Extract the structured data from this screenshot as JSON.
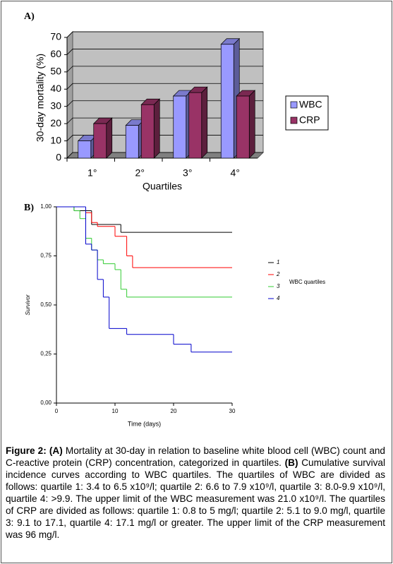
{
  "chart_data": [
    {
      "type": "bar",
      "panel": "A)",
      "categories": [
        "1°",
        "2°",
        "3°",
        "4°"
      ],
      "series": [
        {
          "name": "WBC",
          "color": "#9999ff",
          "values": [
            10,
            19,
            36,
            66
          ]
        },
        {
          "name": "CRP",
          "color": "#993366",
          "values": [
            20,
            31,
            38,
            36
          ]
        }
      ],
      "ylim": [
        0,
        70
      ],
      "yticks": [
        0,
        10,
        20,
        30,
        40,
        50,
        60,
        70
      ],
      "grid": true,
      "ylabel": "30-day mortality (%)",
      "xlabel": "Quartiles",
      "legend": "right"
    },
    {
      "type": "line",
      "panel": "B)",
      "drawstyle": "steps-post",
      "series": [
        {
          "name": "1",
          "color": "#000000",
          "x": [
            0,
            3,
            6,
            11,
            30
          ],
          "values": [
            1,
            0.98,
            0.91,
            0.87,
            0.87
          ]
        },
        {
          "name": "2",
          "color": "#ff0000",
          "x": [
            0,
            5,
            6,
            7,
            10,
            12,
            13,
            30
          ],
          "values": [
            1,
            0.97,
            0.92,
            0.9,
            0.85,
            0.75,
            0.69,
            0.69
          ]
        },
        {
          "name": "3",
          "color": "#33cc33",
          "x": [
            0,
            3,
            4,
            5,
            6,
            7,
            8,
            10,
            11,
            12,
            30
          ],
          "values": [
            1,
            0.98,
            0.94,
            0.84,
            0.78,
            0.73,
            0.71,
            0.68,
            0.58,
            0.54,
            0.54
          ]
        },
        {
          "name": "4",
          "color": "#0000cc",
          "x": [
            0,
            5,
            6,
            7,
            8,
            9,
            12,
            20,
            23,
            30
          ],
          "values": [
            1,
            0.81,
            0.78,
            0.63,
            0.54,
            0.38,
            0.35,
            0.3,
            0.26,
            0.26
          ]
        }
      ],
      "xlim": [
        0,
        30
      ],
      "xticks": [
        0,
        10,
        20,
        30
      ],
      "ylim": [
        0,
        1
      ],
      "yticks": [
        {
          "value": 0,
          "label": "0,00"
        },
        {
          "value": 0.25,
          "label": "0,25"
        },
        {
          "value": 0.5,
          "label": "0,50"
        },
        {
          "value": 0.75,
          "label": "0,75"
        },
        {
          "value": 1,
          "label": "1,00"
        }
      ],
      "xlabel": "Time (days)",
      "ylabel": "Survivor",
      "legend_title": "WBC quartiles",
      "legend": "right"
    }
  ],
  "caption": {
    "label": "Figure 2:",
    "a_tag": "(A)",
    "a_text": " Mortality at 30-day in relation to baseline white blood cell (WBC) count and C-reactive protein (CRP) concentration, categorized in quartiles. ",
    "b_tag": "(B)",
    "b_text": " Cumulative survival incidence curves according to WBC quartiles. The quartiles of WBC are divided as follows: quartile 1: 3.4 to 6.5 x10⁹/l; quartile 2: 6.6 to 7.9 x10⁹/l, quartile 3: 8.0-9.9 x10⁹/l, quartile 4: >9.9. The upper limit of the WBC measurement was 21.0 x10⁹/l. The quartiles of CRP are divided as follows: quartile 1: 0.8 to 5 mg/l; quartile 2: 5.1 to 9.0 mg/l, quartile 3: 9.1 to 17.1, quartile 4: 17.1 mg/l or greater. The upper limit of the CRP measurement was 96 mg/l."
  }
}
